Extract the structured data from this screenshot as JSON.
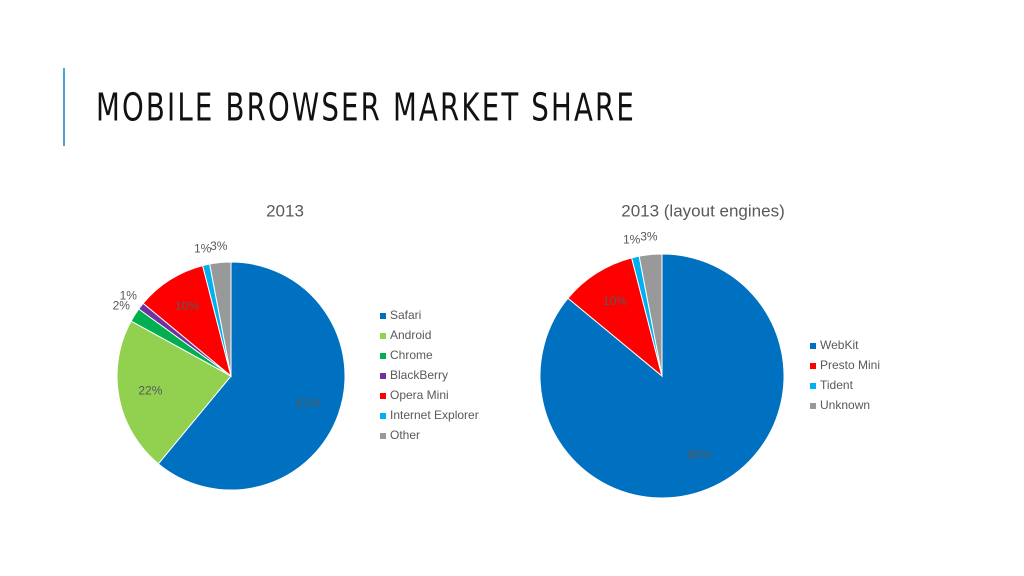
{
  "title": "MOBILE BROWSER MARKET SHARE",
  "chart_data": [
    {
      "type": "pie",
      "title": "2013",
      "categories": [
        "Safari",
        "Android",
        "Chrome",
        "BlackBerry",
        "Opera Mini",
        "Internet Explorer",
        "Other"
      ],
      "values": [
        61,
        22,
        2,
        1,
        10,
        1,
        3
      ],
      "value_labels": [
        "61%",
        "22%",
        "2%",
        "1%",
        "10%",
        "1%",
        "3%"
      ],
      "colors": [
        "#0070c0",
        "#92d050",
        "#00b050",
        "#7030a0",
        "#ff0000",
        "#00b0f0",
        "#999999"
      ]
    },
    {
      "type": "pie",
      "title": "2013 (layout engines)",
      "categories": [
        "WebKit",
        "Presto Mini",
        "Tident",
        "Unknown"
      ],
      "values": [
        86,
        10,
        1,
        3
      ],
      "value_labels": [
        "86%",
        "10%",
        "1%",
        "3%"
      ],
      "colors": [
        "#0070c0",
        "#ff0000",
        "#00b0f0",
        "#999999"
      ]
    }
  ]
}
